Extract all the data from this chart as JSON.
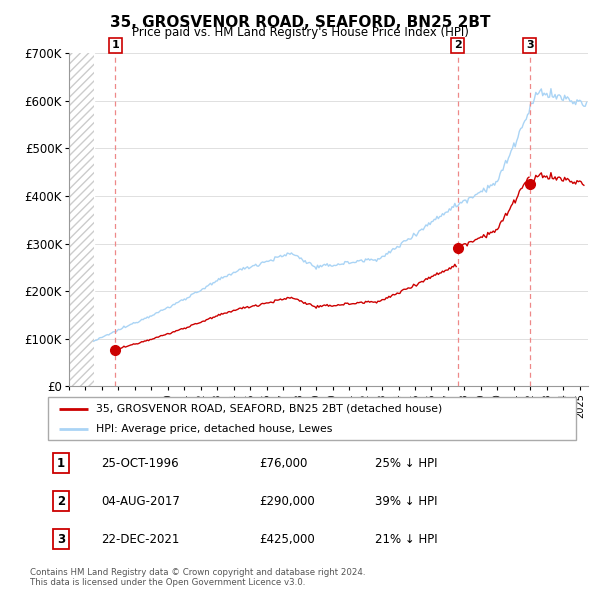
{
  "title": "35, GROSVENOR ROAD, SEAFORD, BN25 2BT",
  "subtitle": "Price paid vs. HM Land Registry's House Price Index (HPI)",
  "ylim": [
    0,
    700000
  ],
  "yticks": [
    0,
    100000,
    200000,
    300000,
    400000,
    500000,
    600000,
    700000
  ],
  "ytick_labels": [
    "£0",
    "£100K",
    "£200K",
    "£300K",
    "£400K",
    "£500K",
    "£600K",
    "£700K"
  ],
  "sale_prices": [
    76000,
    290000,
    425000
  ],
  "sale_labels": [
    "1",
    "2",
    "3"
  ],
  "hpi_color": "#aad4f5",
  "sale_color": "#cc0000",
  "vline_color": "#ee8888",
  "marker_color": "#cc0000",
  "legend_sale_label": "35, GROSVENOR ROAD, SEAFORD, BN25 2BT (detached house)",
  "legend_hpi_label": "HPI: Average price, detached house, Lewes",
  "table_rows": [
    [
      "1",
      "25-OCT-1996",
      "£76,000",
      "25% ↓ HPI"
    ],
    [
      "2",
      "04-AUG-2017",
      "£290,000",
      "39% ↓ HPI"
    ],
    [
      "3",
      "22-DEC-2021",
      "£425,000",
      "21% ↓ HPI"
    ]
  ],
  "footnote": "Contains HM Land Registry data © Crown copyright and database right 2024.\nThis data is licensed under the Open Government Licence v3.0.",
  "xlim_start": 1994.0,
  "xlim_end": 2025.5,
  "hatch_end_year": 1995.5,
  "sale_year_nums": [
    1996.82,
    2017.58,
    2021.97
  ]
}
